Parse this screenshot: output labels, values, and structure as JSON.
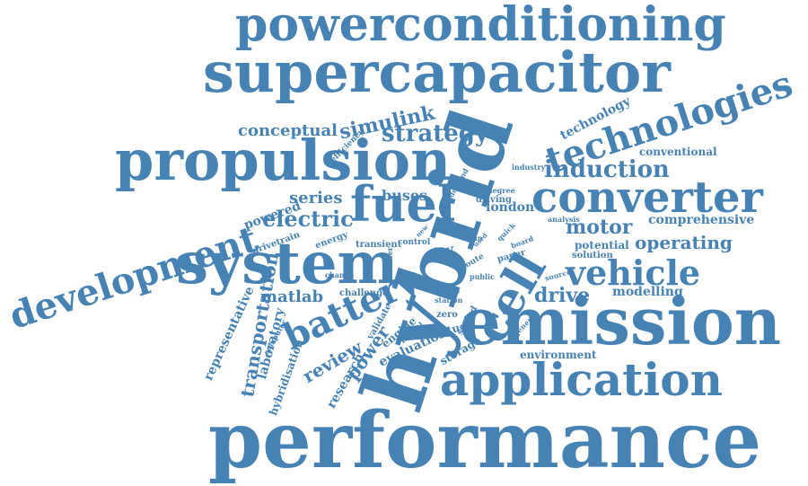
{
  "style": {
    "word_color": "#4682b4",
    "background": "#ffffff"
  },
  "words": [
    "powerconditioning",
    "supercapacitor",
    "propulsion",
    "hybrid",
    "system",
    "performance",
    "emission",
    "application",
    "converter",
    "technologies",
    "fuel",
    "development",
    "battery",
    "cell",
    "vehicle",
    "induction",
    "strategy",
    "simulink",
    "conceptual",
    "electric",
    "series",
    "operating",
    "motor",
    "drive",
    "modelling",
    "comprehensive",
    "conventional",
    "technology",
    "matlab",
    "buses",
    "london",
    "powered",
    "review",
    "power",
    "transportation",
    "laboratory",
    "representative",
    "hybridisation",
    "research",
    "evaluation",
    "engine",
    "storage",
    "environment",
    "potential",
    "solution",
    "analysis",
    "driving",
    "degree",
    "industry",
    "efficiency",
    "drivetrain",
    "energy",
    "transient",
    "control",
    "city",
    "zero",
    "study",
    "validate",
    "model",
    "challenge",
    "design",
    "station",
    "scaled",
    "route",
    "public",
    "paper",
    "source",
    "general",
    "computer",
    "number",
    "board",
    "main",
    "change",
    "demand",
    "quick",
    "used",
    "diesel",
    "new"
  ]
}
